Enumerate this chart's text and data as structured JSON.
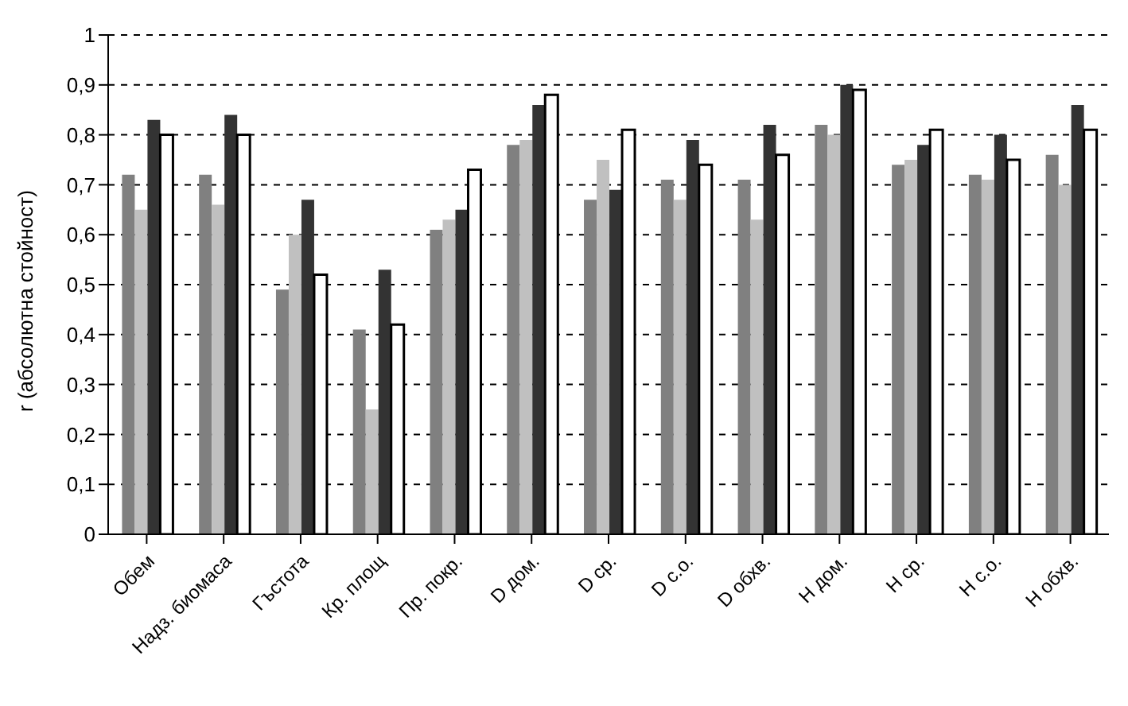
{
  "chart_data": {
    "type": "bar",
    "ylabel": "r (абсолютна стойност)",
    "categories": [
      "Обем",
      "Надз. биомаса",
      "Гъстота",
      "Кр. площ",
      "Пр. покр.",
      "D дом.",
      "D ср.",
      "D с.о.",
      "D обхв.",
      "H дом.",
      "H ср.",
      "H с.о.",
      "H обхв."
    ],
    "series": [
      {
        "color": "#808080",
        "values": [
          0.72,
          0.72,
          0.49,
          0.41,
          0.61,
          0.78,
          0.67,
          0.71,
          0.71,
          0.82,
          0.74,
          0.72,
          0.76
        ]
      },
      {
        "color": "#c0c0c0",
        "values": [
          0.65,
          0.66,
          0.6,
          0.25,
          0.63,
          0.79,
          0.75,
          0.67,
          0.63,
          0.8,
          0.75,
          0.71,
          0.7
        ]
      },
      {
        "color": "#333333",
        "values": [
          0.83,
          0.84,
          0.67,
          0.53,
          0.65,
          0.86,
          0.69,
          0.79,
          0.82,
          0.9,
          0.78,
          0.8,
          0.86
        ]
      },
      {
        "color": "#ffffff",
        "values": [
          0.8,
          0.8,
          0.52,
          0.42,
          0.73,
          0.88,
          0.81,
          0.74,
          0.76,
          0.89,
          0.81,
          0.75,
          0.81
        ]
      }
    ],
    "ylim": [
      0,
      1
    ],
    "yticks": [
      0,
      {
        "value": 0.1,
        "label": "0,1"
      },
      {
        "value": 0.2,
        "label": "0,2"
      },
      {
        "value": 0.3,
        "label": "0,3"
      },
      {
        "value": 0.4,
        "label": "0,4"
      },
      {
        "value": 0.5,
        "label": "0,5"
      },
      {
        "value": 0.6,
        "label": "0,6"
      },
      {
        "value": 0.7,
        "label": "0,7"
      },
      {
        "value": 0.8,
        "label": "0,8"
      },
      {
        "value": 0.9,
        "label": "0,9"
      },
      1
    ],
    "grid": "y"
  }
}
